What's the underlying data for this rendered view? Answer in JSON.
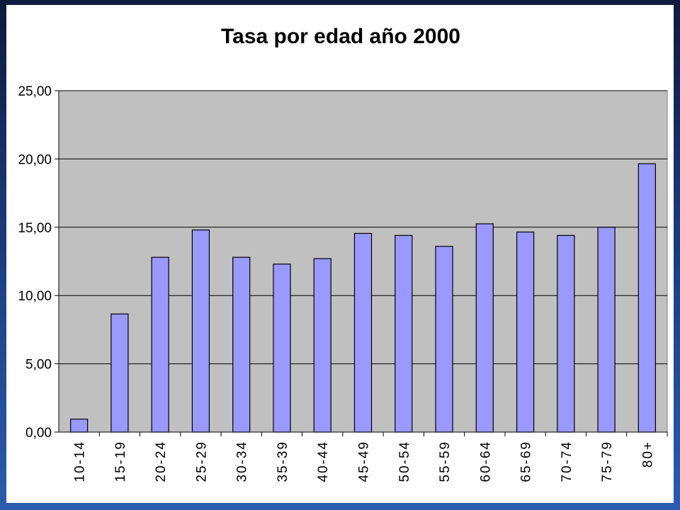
{
  "chart_data": {
    "type": "bar",
    "title": "Tasa por edad año 2000",
    "xlabel": "",
    "ylabel": "",
    "categories": [
      "10-14",
      "15-19",
      "20-24",
      "25-29",
      "30-34",
      "35-39",
      "40-44",
      "45-49",
      "50-54",
      "55-59",
      "60-64",
      "65-69",
      "70-74",
      "75-79",
      "80+"
    ],
    "values": [
      0.95,
      8.65,
      12.8,
      14.8,
      12.8,
      12.3,
      12.7,
      14.55,
      14.4,
      13.6,
      15.25,
      14.65,
      14.4,
      15.0,
      19.65
    ],
    "ylim": [
      0,
      25
    ],
    "yticks": [
      "0,00",
      "5,00",
      "10,00",
      "15,00",
      "20,00",
      "25,00"
    ],
    "grid": true,
    "legend": "none",
    "colors": {
      "bar": "#9999ff",
      "plot_background": "#c0c0c0",
      "frame": "#1a3a78"
    }
  }
}
